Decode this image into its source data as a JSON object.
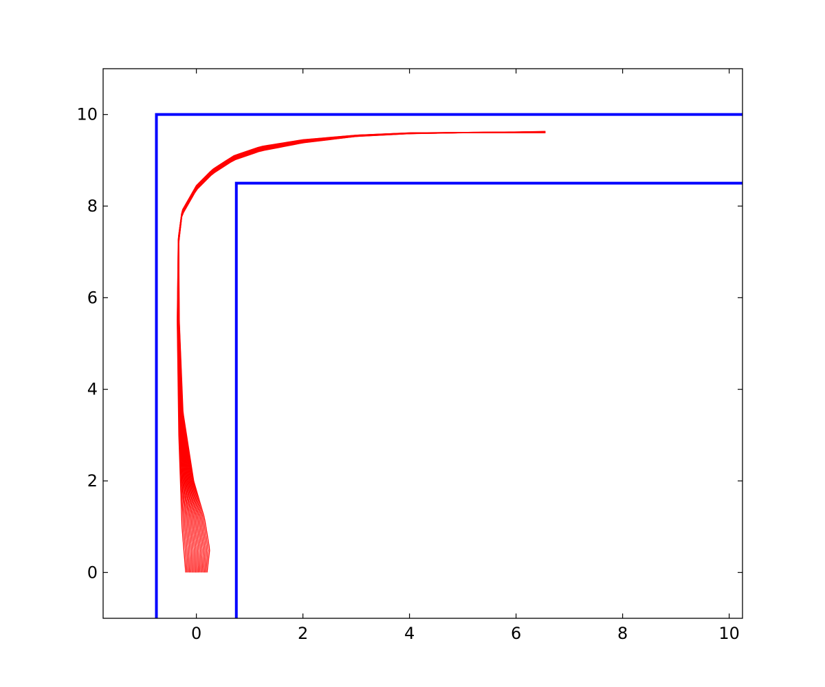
{
  "chart_data": {
    "type": "line",
    "title": "",
    "xlabel": "",
    "ylabel": "",
    "xlim": [
      -1.75,
      10.25
    ],
    "ylim": [
      -1,
      11
    ],
    "x_ticks": [
      0,
      2,
      4,
      6,
      8,
      10
    ],
    "x_tick_labels": [
      "0",
      "2",
      "4",
      "6",
      "8",
      "10"
    ],
    "y_ticks": [
      0,
      2,
      4,
      6,
      8,
      10
    ],
    "y_tick_labels": [
      "0",
      "2",
      "4",
      "6",
      "8",
      "10"
    ],
    "grid": false,
    "legend": false,
    "colors": {
      "walls": "#0000ff",
      "trajectories": "#ff0000"
    },
    "walls": [
      {
        "x": [
          -0.75,
          -0.75,
          10.25
        ],
        "y": [
          -1,
          10,
          10
        ]
      },
      {
        "x": [
          0.75,
          0.75,
          10.25
        ],
        "y": [
          -1,
          8.5,
          8.5
        ]
      }
    ],
    "trajectory_count": 18,
    "trajectory_envelope": {
      "left": [
        [
          -0.2,
          0
        ],
        [
          -0.27,
          1
        ],
        [
          -0.33,
          3
        ],
        [
          -0.36,
          5.5
        ],
        [
          -0.34,
          7.3
        ],
        [
          -0.27,
          7.9
        ],
        [
          0,
          8.45
        ],
        [
          0.3,
          8.8
        ],
        [
          0.7,
          9.1
        ],
        [
          1.2,
          9.3
        ],
        [
          2,
          9.45
        ],
        [
          3,
          9.55
        ],
        [
          4,
          9.6
        ],
        [
          5,
          9.61
        ],
        [
          6,
          9.62
        ],
        [
          6.55,
          9.63
        ]
      ],
      "right": [
        [
          0.2,
          0
        ],
        [
          0.25,
          0.5
        ],
        [
          0.15,
          1.2
        ],
        [
          -0.05,
          2
        ],
        [
          -0.25,
          3.5
        ],
        [
          -0.32,
          5.5
        ],
        [
          -0.33,
          7.2
        ],
        [
          -0.27,
          7.8
        ],
        [
          0,
          8.35
        ],
        [
          0.3,
          8.7
        ],
        [
          0.7,
          9
        ],
        [
          1.2,
          9.2
        ],
        [
          2,
          9.38
        ],
        [
          3,
          9.52
        ],
        [
          4,
          9.58
        ],
        [
          5,
          9.6
        ],
        [
          6,
          9.6
        ],
        [
          6.55,
          9.6
        ]
      ]
    }
  }
}
